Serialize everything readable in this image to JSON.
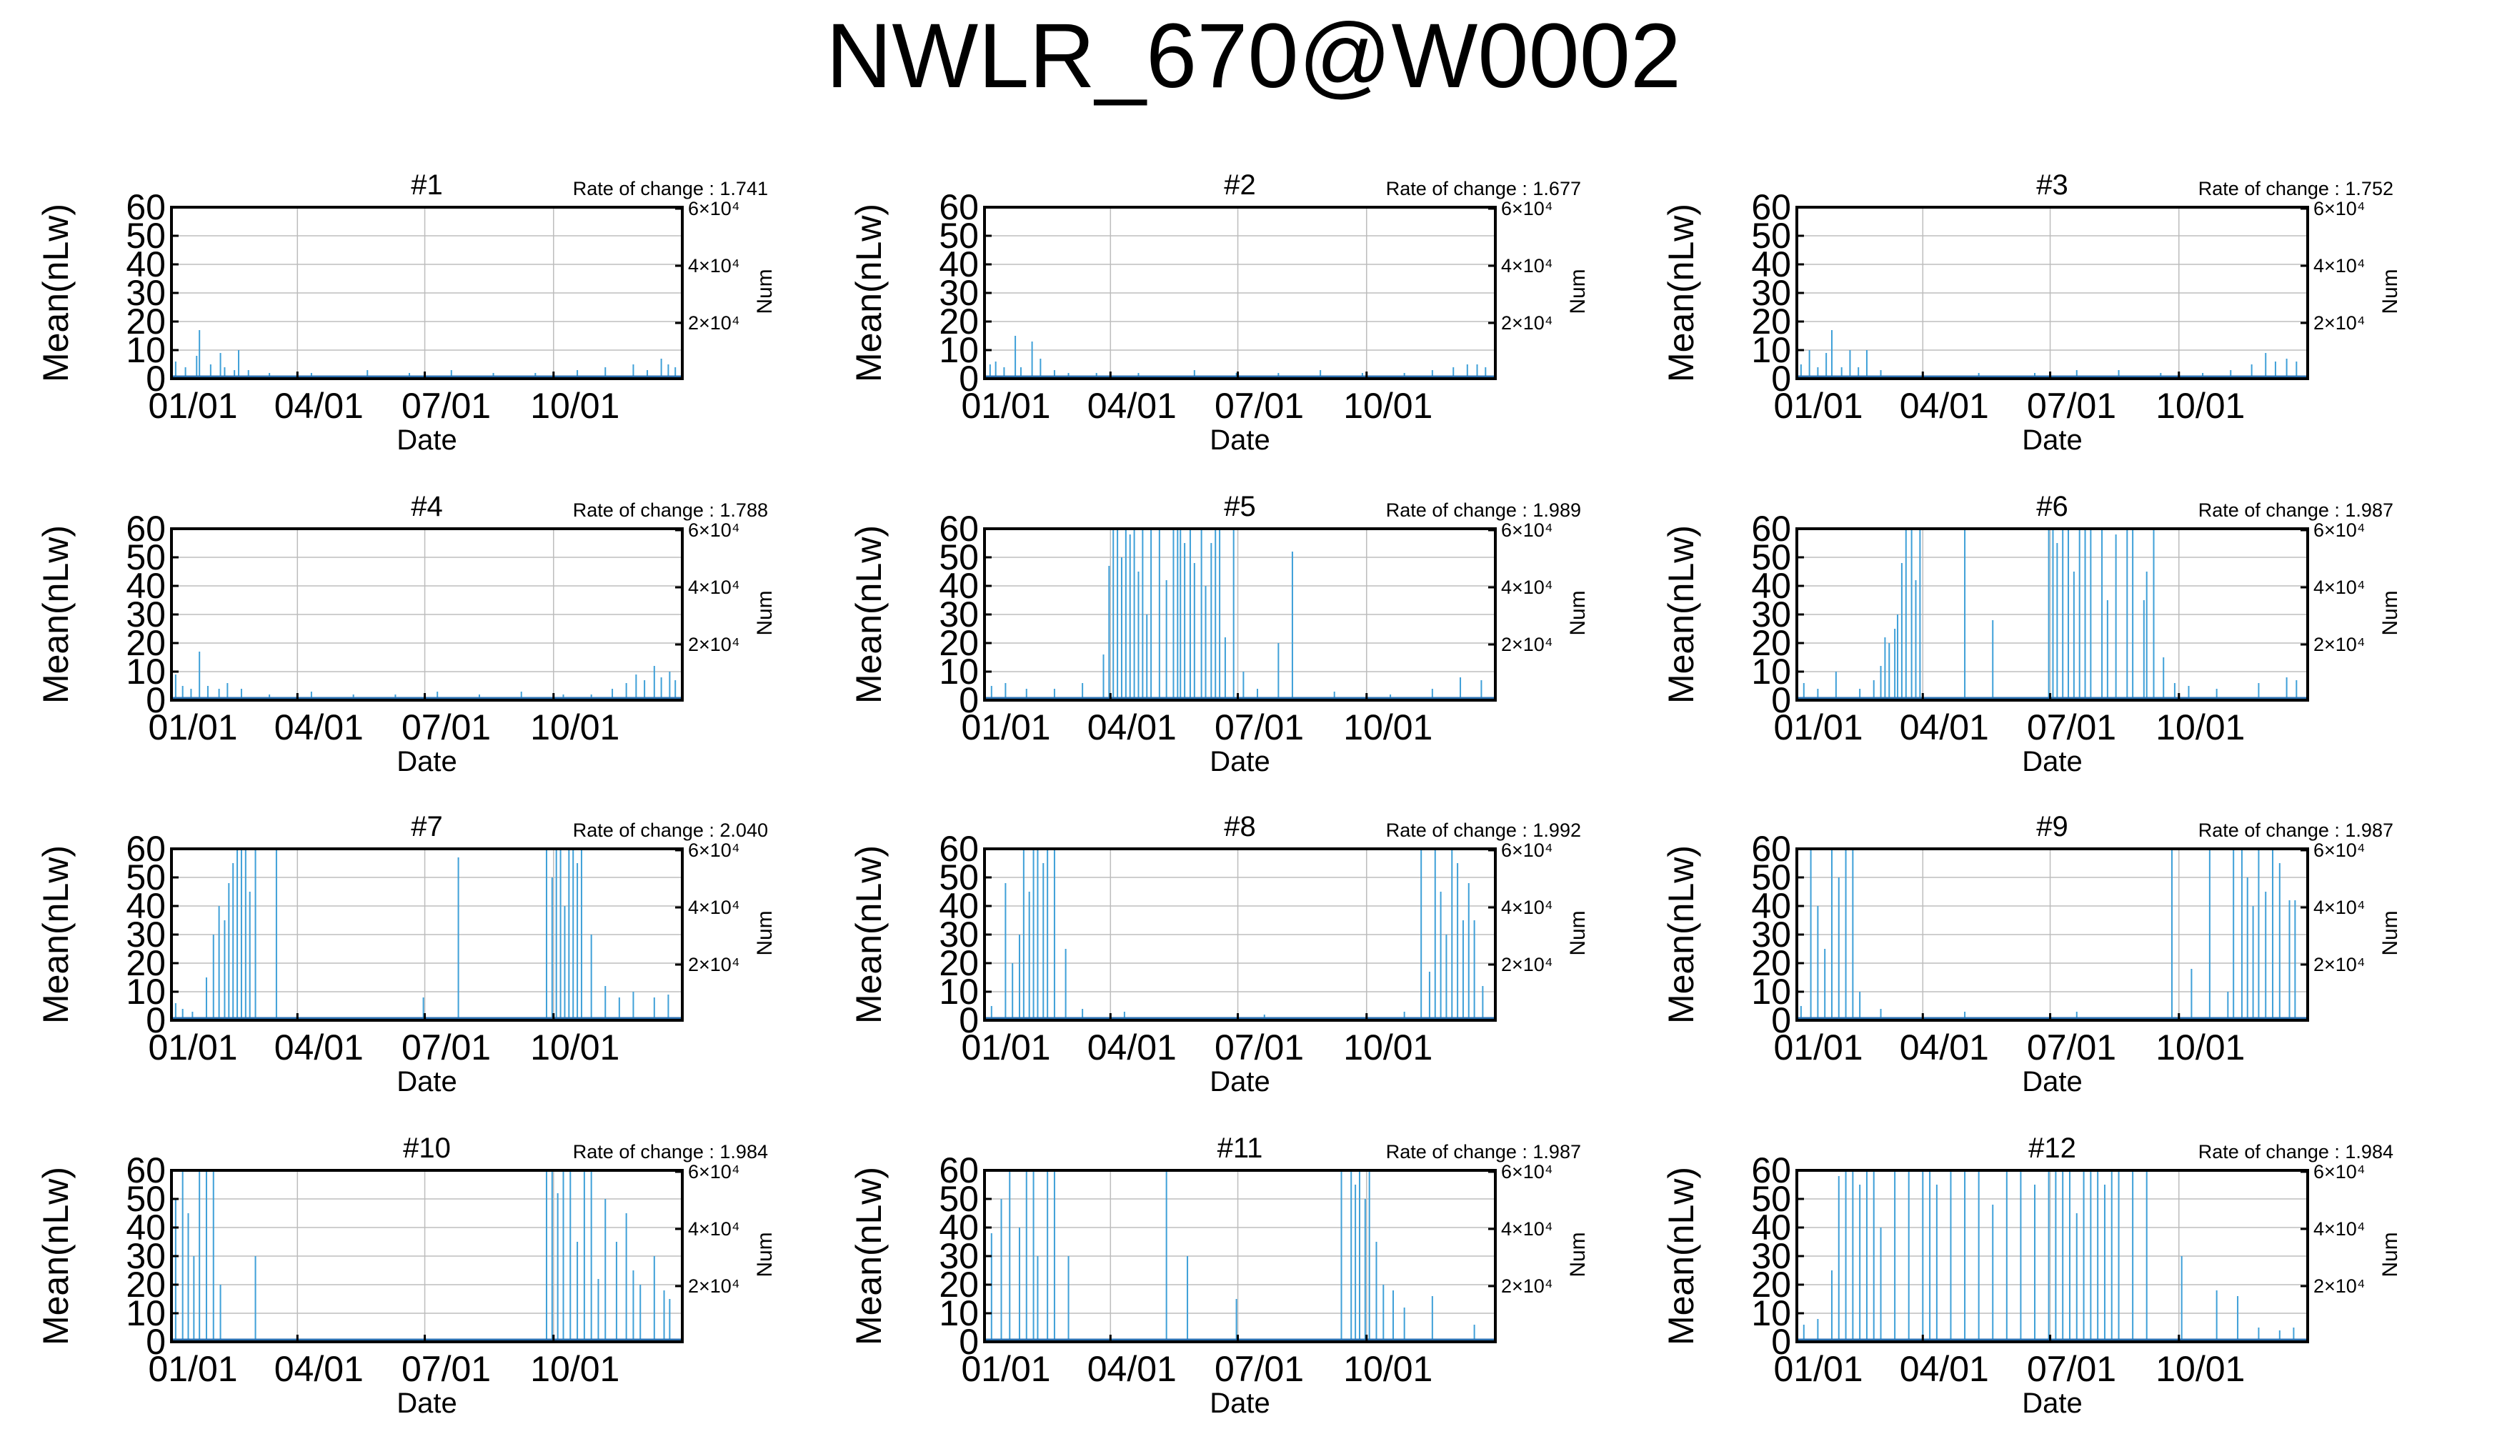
{
  "page_title": "NWLR_670@W0002",
  "colors": {
    "bar": "#3fa0d8",
    "axis": "#000000",
    "grid": "#bdbdbd",
    "zero_line": "#2a6fb0"
  },
  "chart_data": [
    {
      "type": "bar",
      "title": "#1",
      "rate_label": "Rate of change : 1.741",
      "xlabel": "Date",
      "ylabel": "Mean(nLw)",
      "y2label": "Num",
      "ylim": [
        0,
        60
      ],
      "yticks": [
        0,
        10,
        20,
        30,
        40,
        50,
        60
      ],
      "y2ticks": [
        "2×10⁴",
        "4×10⁴",
        "6×10⁴"
      ],
      "xticks": [
        "01/01",
        "04/01",
        "07/01",
        "10/01"
      ],
      "grid": true,
      "x": [
        3,
        10,
        18,
        20,
        28,
        35,
        38,
        45,
        48,
        55,
        70,
        100,
        140,
        170,
        200,
        230,
        260,
        290,
        310,
        330,
        340,
        350,
        355,
        360
      ],
      "values": [
        6,
        4,
        8,
        17,
        5,
        9,
        4,
        3,
        10,
        3,
        2,
        2,
        3,
        2,
        3,
        2,
        2,
        3,
        4,
        5,
        3,
        7,
        5,
        4
      ]
    },
    {
      "type": "bar",
      "title": "#2",
      "rate_label": "Rate of change : 1.677",
      "xlabel": "Date",
      "ylabel": "Mean(nLw)",
      "y2label": "Num",
      "ylim": [
        0,
        60
      ],
      "yticks": [
        0,
        10,
        20,
        30,
        40,
        50,
        60
      ],
      "y2ticks": [
        "2×10⁴",
        "4×10⁴",
        "6×10⁴"
      ],
      "xticks": [
        "01/01",
        "04/01",
        "07/01",
        "10/01"
      ],
      "grid": true,
      "x": [
        4,
        8,
        14,
        22,
        26,
        34,
        40,
        50,
        60,
        80,
        110,
        150,
        180,
        210,
        240,
        270,
        300,
        320,
        335,
        345,
        352,
        358
      ],
      "values": [
        5,
        6,
        4,
        15,
        4,
        13,
        7,
        3,
        2,
        2,
        2,
        3,
        2,
        2,
        3,
        2,
        2,
        3,
        4,
        5,
        5,
        4
      ]
    },
    {
      "type": "bar",
      "title": "#3",
      "rate_label": "Rate of change : 1.752",
      "xlabel": "Date",
      "ylabel": "Mean(nLw)",
      "y2label": "Num",
      "ylim": [
        0,
        60
      ],
      "yticks": [
        0,
        10,
        20,
        30,
        40,
        50,
        60
      ],
      "y2ticks": [
        "2×10⁴",
        "4×10⁴",
        "6×10⁴"
      ],
      "xticks": [
        "01/01",
        "04/01",
        "07/01",
        "10/01"
      ],
      "grid": true,
      "x": [
        3,
        9,
        15,
        21,
        25,
        32,
        38,
        44,
        50,
        60,
        90,
        130,
        170,
        200,
        230,
        260,
        290,
        310,
        325,
        335,
        342,
        350,
        357
      ],
      "values": [
        5,
        10,
        4,
        9,
        17,
        4,
        10,
        4,
        10,
        3,
        2,
        2,
        2,
        3,
        3,
        2,
        2,
        3,
        5,
        9,
        6,
        7,
        6
      ]
    },
    {
      "type": "bar",
      "title": "#4",
      "rate_label": "Rate of change : 1.788",
      "xlabel": "Date",
      "ylabel": "Mean(nLw)",
      "y2label": "Num",
      "ylim": [
        0,
        60
      ],
      "yticks": [
        0,
        10,
        20,
        30,
        40,
        50,
        60
      ],
      "y2ticks": [
        "2×10⁴",
        "4×10⁴",
        "6×10⁴"
      ],
      "xticks": [
        "01/01",
        "04/01",
        "07/01",
        "10/01"
      ],
      "grid": true,
      "x": [
        3,
        8,
        14,
        20,
        26,
        34,
        40,
        50,
        70,
        100,
        130,
        160,
        190,
        220,
        250,
        280,
        300,
        315,
        325,
        332,
        338,
        345,
        350,
        356,
        360
      ],
      "values": [
        9,
        5,
        4,
        17,
        5,
        4,
        6,
        4,
        2,
        3,
        2,
        2,
        3,
        2,
        3,
        2,
        2,
        4,
        6,
        9,
        7,
        12,
        8,
        10,
        7
      ]
    },
    {
      "type": "bar",
      "title": "#5",
      "rate_label": "Rate of change : 1.989",
      "xlabel": "Date",
      "ylabel": "Mean(nLw)",
      "y2label": "Num",
      "ylim": [
        0,
        60
      ],
      "yticks": [
        0,
        10,
        20,
        30,
        40,
        50,
        60
      ],
      "y2ticks": [
        "2×10⁴",
        "4×10⁴",
        "6×10⁴"
      ],
      "xticks": [
        "01/01",
        "04/01",
        "07/01",
        "10/01"
      ],
      "grid": true,
      "x": [
        5,
        15,
        30,
        50,
        70,
        85,
        89,
        92,
        95,
        98,
        101,
        104,
        107,
        110,
        113,
        116,
        119,
        125,
        130,
        135,
        138,
        140,
        143,
        147,
        150,
        155,
        158,
        162,
        165,
        168,
        172,
        178,
        185,
        195,
        210,
        220,
        250,
        290,
        320,
        340,
        355
      ],
      "values": [
        5,
        6,
        4,
        4,
        6,
        16,
        47,
        60,
        60,
        50,
        60,
        58,
        60,
        45,
        60,
        30,
        60,
        60,
        42,
        60,
        60,
        60,
        55,
        60,
        48,
        60,
        40,
        55,
        60,
        60,
        22,
        60,
        10,
        4,
        20,
        52,
        3,
        2,
        4,
        8,
        7
      ]
    },
    {
      "type": "bar",
      "title": "#6",
      "rate_label": "Rate of change : 1.987",
      "xlabel": "Date",
      "ylabel": "Mean(nLw)",
      "y2label": "Num",
      "ylim": [
        0,
        60
      ],
      "yticks": [
        0,
        10,
        20,
        30,
        40,
        50,
        60
      ],
      "y2ticks": [
        "2×10⁴",
        "4×10⁴",
        "6×10⁴"
      ],
      "xticks": [
        "01/01",
        "04/01",
        "07/01",
        "10/01"
      ],
      "grid": true,
      "x": [
        5,
        15,
        28,
        45,
        55,
        60,
        63,
        66,
        70,
        72,
        75,
        78,
        82,
        85,
        88,
        120,
        140,
        180,
        183,
        186,
        190,
        194,
        198,
        202,
        206,
        210,
        218,
        222,
        228,
        236,
        240,
        248,
        250,
        255,
        262,
        270,
        280,
        300,
        330,
        350,
        357
      ],
      "values": [
        6,
        4,
        10,
        4,
        7,
        12,
        22,
        20,
        25,
        30,
        48,
        60,
        60,
        42,
        60,
        60,
        28,
        60,
        60,
        55,
        60,
        60,
        45,
        60,
        60,
        60,
        60,
        35,
        58,
        60,
        60,
        35,
        45,
        60,
        15,
        6,
        5,
        4,
        6,
        8,
        7
      ]
    },
    {
      "type": "bar",
      "title": "#7",
      "rate_label": "Rate of change : 2.040",
      "xlabel": "Date",
      "ylabel": "Mean(nLw)",
      "y2label": "Num",
      "ylim": [
        0,
        60
      ],
      "yticks": [
        0,
        10,
        20,
        30,
        40,
        50,
        60
      ],
      "y2ticks": [
        "2×10⁴",
        "4×10⁴",
        "6×10⁴"
      ],
      "xticks": [
        "01/01",
        "04/01",
        "07/01",
        "10/01"
      ],
      "grid": true,
      "x": [
        3,
        8,
        15,
        25,
        30,
        34,
        38,
        41,
        44,
        47,
        50,
        53,
        56,
        60,
        75,
        180,
        205,
        268,
        272,
        275,
        278,
        281,
        284,
        287,
        290,
        293,
        300,
        310,
        320,
        330,
        345,
        355
      ],
      "values": [
        6,
        4,
        3,
        15,
        30,
        40,
        35,
        48,
        55,
        60,
        60,
        60,
        45,
        60,
        60,
        8,
        57,
        60,
        50,
        60,
        60,
        40,
        60,
        60,
        55,
        60,
        30,
        12,
        8,
        10,
        8,
        9
      ]
    },
    {
      "type": "bar",
      "title": "#8",
      "rate_label": "Rate of change : 1.992",
      "xlabel": "Date",
      "ylabel": "Mean(nLw)",
      "y2label": "Num",
      "ylim": [
        0,
        60
      ],
      "yticks": [
        0,
        10,
        20,
        30,
        40,
        50,
        60
      ],
      "y2ticks": [
        "2×10⁴",
        "4×10⁴",
        "6×10⁴"
      ],
      "xticks": [
        "01/01",
        "04/01",
        "07/01",
        "10/01"
      ],
      "grid": true,
      "x": [
        5,
        15,
        20,
        25,
        28,
        32,
        35,
        38,
        42,
        45,
        50,
        58,
        70,
        100,
        200,
        300,
        312,
        318,
        322,
        326,
        330,
        334,
        338,
        342,
        346,
        350,
        356
      ],
      "values": [
        5,
        48,
        20,
        30,
        60,
        45,
        60,
        60,
        55,
        60,
        60,
        25,
        4,
        3,
        2,
        3,
        60,
        17,
        60,
        45,
        30,
        60,
        55,
        35,
        48,
        35,
        12
      ]
    },
    {
      "type": "bar",
      "title": "#9",
      "rate_label": "Rate of change : 1.987",
      "xlabel": "Date",
      "ylabel": "Mean(nLw)",
      "y2label": "Num",
      "ylim": [
        0,
        60
      ],
      "yticks": [
        0,
        10,
        20,
        30,
        40,
        50,
        60
      ],
      "y2ticks": [
        "2×10⁴",
        "4×10⁴",
        "6×10⁴"
      ],
      "xticks": [
        "01/01",
        "04/01",
        "07/01",
        "10/01"
      ],
      "grid": true,
      "x": [
        3,
        10,
        15,
        20,
        25,
        30,
        35,
        40,
        45,
        60,
        120,
        200,
        268,
        282,
        295,
        308,
        312,
        318,
        322,
        326,
        330,
        335,
        340,
        345,
        352,
        356
      ],
      "values": [
        5,
        60,
        40,
        25,
        60,
        50,
        60,
        60,
        10,
        4,
        3,
        3,
        60,
        18,
        60,
        10,
        60,
        60,
        50,
        40,
        60,
        45,
        60,
        55,
        42,
        42
      ]
    },
    {
      "type": "bar",
      "title": "#10",
      "rate_label": "Rate of change : 1.984",
      "xlabel": "Date",
      "ylabel": "Mean(nLw)",
      "y2label": "Num",
      "ylim": [
        0,
        60
      ],
      "yticks": [
        0,
        10,
        20,
        30,
        40,
        50,
        60
      ],
      "y2ticks": [
        "2×10⁴",
        "4×10⁴",
        "6×10⁴"
      ],
      "xticks": [
        "01/01",
        "04/01",
        "07/01",
        "10/01"
      ],
      "grid": true,
      "x": [
        3,
        8,
        12,
        16,
        20,
        25,
        30,
        35,
        60,
        268,
        272,
        276,
        280,
        285,
        290,
        295,
        300,
        305,
        310,
        318,
        325,
        330,
        335,
        345,
        352,
        356
      ],
      "values": [
        50,
        60,
        45,
        30,
        60,
        60,
        60,
        20,
        30,
        60,
        60,
        52,
        60,
        60,
        35,
        60,
        60,
        22,
        50,
        35,
        45,
        25,
        20,
        30,
        18,
        15
      ]
    },
    {
      "type": "bar",
      "title": "#11",
      "rate_label": "Rate of change : 1.987",
      "xlabel": "Date",
      "ylabel": "Mean(nLw)",
      "y2label": "Num",
      "ylim": [
        0,
        60
      ],
      "yticks": [
        0,
        10,
        20,
        30,
        40,
        50,
        60
      ],
      "y2ticks": [
        "2×10⁴",
        "4×10⁴",
        "6×10⁴"
      ],
      "xticks": [
        "01/01",
        "04/01",
        "07/01",
        "10/01"
      ],
      "grid": true,
      "x": [
        5,
        12,
        18,
        25,
        30,
        35,
        38,
        45,
        50,
        60,
        130,
        145,
        180,
        255,
        262,
        265,
        268,
        272,
        275,
        280,
        285,
        292,
        300,
        320,
        350
      ],
      "values": [
        38,
        50,
        60,
        40,
        60,
        60,
        30,
        60,
        60,
        30,
        60,
        30,
        15,
        60,
        60,
        55,
        60,
        50,
        60,
        35,
        20,
        18,
        12,
        16,
        6
      ]
    },
    {
      "type": "bar",
      "title": "#12",
      "rate_label": "Rate of change : 1.984",
      "xlabel": "Date",
      "ylabel": "Mean(nLw)",
      "y2label": "Num",
      "ylim": [
        0,
        60
      ],
      "yticks": [
        0,
        10,
        20,
        30,
        40,
        50,
        60
      ],
      "y2ticks": [
        "2×10⁴",
        "4×10⁴",
        "6×10⁴"
      ],
      "xticks": [
        "01/01",
        "04/01",
        "07/01",
        "10/01"
      ],
      "grid": true,
      "x": [
        5,
        15,
        25,
        30,
        35,
        40,
        45,
        50,
        55,
        60,
        70,
        80,
        90,
        95,
        100,
        110,
        120,
        130,
        140,
        150,
        160,
        170,
        180,
        185,
        190,
        195,
        200,
        205,
        210,
        215,
        220,
        225,
        230,
        240,
        250,
        275,
        300,
        315,
        330,
        345,
        355
      ],
      "values": [
        6,
        8,
        25,
        58,
        60,
        60,
        55,
        60,
        60,
        40,
        60,
        60,
        60,
        60,
        55,
        60,
        60,
        60,
        48,
        60,
        60,
        55,
        60,
        60,
        60,
        60,
        45,
        60,
        60,
        60,
        55,
        60,
        60,
        60,
        60,
        30,
        18,
        16,
        5,
        4,
        5
      ]
    }
  ]
}
